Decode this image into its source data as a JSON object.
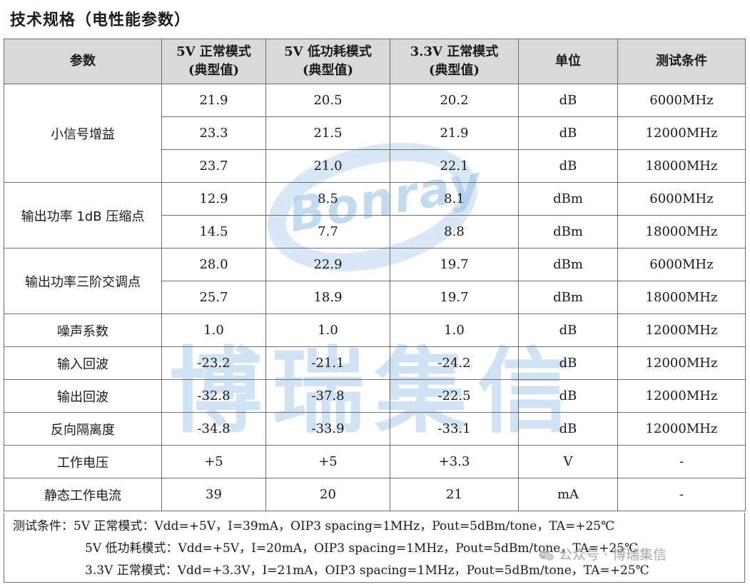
{
  "heading": "技术规格（电性能参数）",
  "watermark": {
    "logo_text": "Bonray",
    "brand_text": "博瑞集信"
  },
  "table": {
    "headers": {
      "param": "参数",
      "mode1_line1": "5V 正常模式",
      "mode1_line2": "(典型值)",
      "mode2_line1": "5V 低功耗模式",
      "mode2_line2": "(典型值)",
      "mode3_line1": "3.3V 正常模式",
      "mode3_line2": "(典型值)",
      "unit": "单位",
      "condition": "测试条件"
    },
    "groups": [
      {
        "name": "小信号增益",
        "rows": [
          {
            "v1": "21.9",
            "v2": "20.5",
            "v3": "20.2",
            "unit": "dB",
            "cond": "6000MHz"
          },
          {
            "v1": "23.3",
            "v2": "21.5",
            "v3": "21.9",
            "unit": "dB",
            "cond": "12000MHz"
          },
          {
            "v1": "23.7",
            "v2": "21.0",
            "v3": "22.1",
            "unit": "dB",
            "cond": "18000MHz"
          }
        ]
      },
      {
        "name": "输出功率 1dB 压缩点",
        "rows": [
          {
            "v1": "12.9",
            "v2": "8.5",
            "v3": "8.1",
            "unit": "dBm",
            "cond": "6000MHz"
          },
          {
            "v1": "14.5",
            "v2": "7.7",
            "v3": "8.8",
            "unit": "dBm",
            "cond": "18000MHz"
          }
        ]
      },
      {
        "name": "输出功率三阶交调点",
        "rows": [
          {
            "v1": "28.0",
            "v2": "22.9",
            "v3": "19.7",
            "unit": "dBm",
            "cond": "6000MHz"
          },
          {
            "v1": "25.7",
            "v2": "18.9",
            "v3": "19.7",
            "unit": "dBm",
            "cond": "18000MHz"
          }
        ]
      },
      {
        "name": "噪声系数",
        "rows": [
          {
            "v1": "1.0",
            "v2": "1.0",
            "v3": "1.0",
            "unit": "dB",
            "cond": "12000MHz"
          }
        ]
      },
      {
        "name": "输入回波",
        "rows": [
          {
            "v1": "-23.2",
            "v2": "-21.1",
            "v3": "-24.2",
            "unit": "dB",
            "cond": "12000MHz"
          }
        ]
      },
      {
        "name": "输出回波",
        "rows": [
          {
            "v1": "-32.8",
            "v2": "-37.8",
            "v3": "-22.5",
            "unit": "dB",
            "cond": "12000MHz"
          }
        ]
      },
      {
        "name": "反向隔离度",
        "rows": [
          {
            "v1": "-34.8",
            "v2": "-33.9",
            "v3": "-33.1",
            "unit": "dB",
            "cond": "12000MHz"
          }
        ]
      },
      {
        "name": "工作电压",
        "rows": [
          {
            "v1": "+5",
            "v2": "+5",
            "v3": "+3.3",
            "unit": "V",
            "cond": "-"
          }
        ]
      },
      {
        "name": "静态工作电流",
        "rows": [
          {
            "v1": "39",
            "v2": "20",
            "v3": "21",
            "unit": "mA",
            "cond": "-"
          }
        ]
      }
    ]
  },
  "notes": {
    "line1": "测试条件：5V 正常模式：Vdd=+5V，I=39mA，OIP3 spacing=1MHz，Pout=5dBm/tone，TA=+25℃",
    "line2": "5V 低功耗模式：Vdd=+5V，I=20mA，OIP3 spacing=1MHz，Pout=5dBm/tone，TA=+25℃",
    "line3": "3.3V 正常模式：Vdd=+3.3V，I=21mA，OIP3 spacing=1MHz，Pout=5dBm/tone，TA=+25℃"
  },
  "wechat_overlay": "公众号 · 博瑞集信",
  "colors": {
    "header_bg": "#d9d9d9",
    "border": "#6e6e6e",
    "watermark": "#a9cdec"
  }
}
